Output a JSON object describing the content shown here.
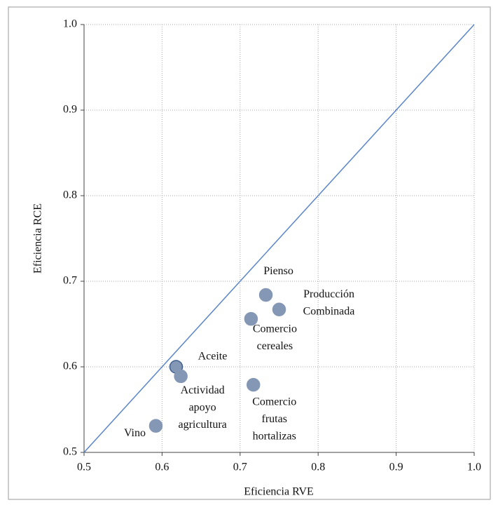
{
  "chart_data": {
    "type": "scatter",
    "xlabel": "Eficiencia  RVE",
    "ylabel": "Eficiencia  RCE",
    "xlim": [
      0.5,
      1.0
    ],
    "ylim": [
      0.5,
      1.0
    ],
    "xticks": [
      0.5,
      0.6,
      0.7,
      0.8,
      0.9,
      {
        "value": 1.0,
        "label": "1.0"
      }
    ],
    "yticks": [
      0.5,
      0.6,
      0.7,
      0.8,
      0.9,
      {
        "value": 1.0,
        "label": "1.0"
      }
    ],
    "grid": true,
    "color": "#8497b5",
    "reference_line": {
      "x": [
        0.5,
        1.0
      ],
      "y": [
        0.5,
        1.0
      ],
      "color": "#5b86c8"
    },
    "x": [
      0.733,
      0.75,
      0.714,
      0.618,
      0.624,
      0.717,
      0.592
    ],
    "values": [
      0.684,
      0.667,
      0.656,
      0.6,
      0.589,
      0.579,
      0.531
    ],
    "labels": [
      [
        "Pienso"
      ],
      [
        "Producción",
        "Combinada"
      ],
      [
        "Comercio",
        "cereales"
      ],
      [
        "Aceite"
      ],
      [
        "Actividad",
        "apoyo",
        "agricultura"
      ],
      [
        "Comercio",
        "frutas",
        "hortalizas"
      ],
      [
        "Vino"
      ]
    ]
  }
}
